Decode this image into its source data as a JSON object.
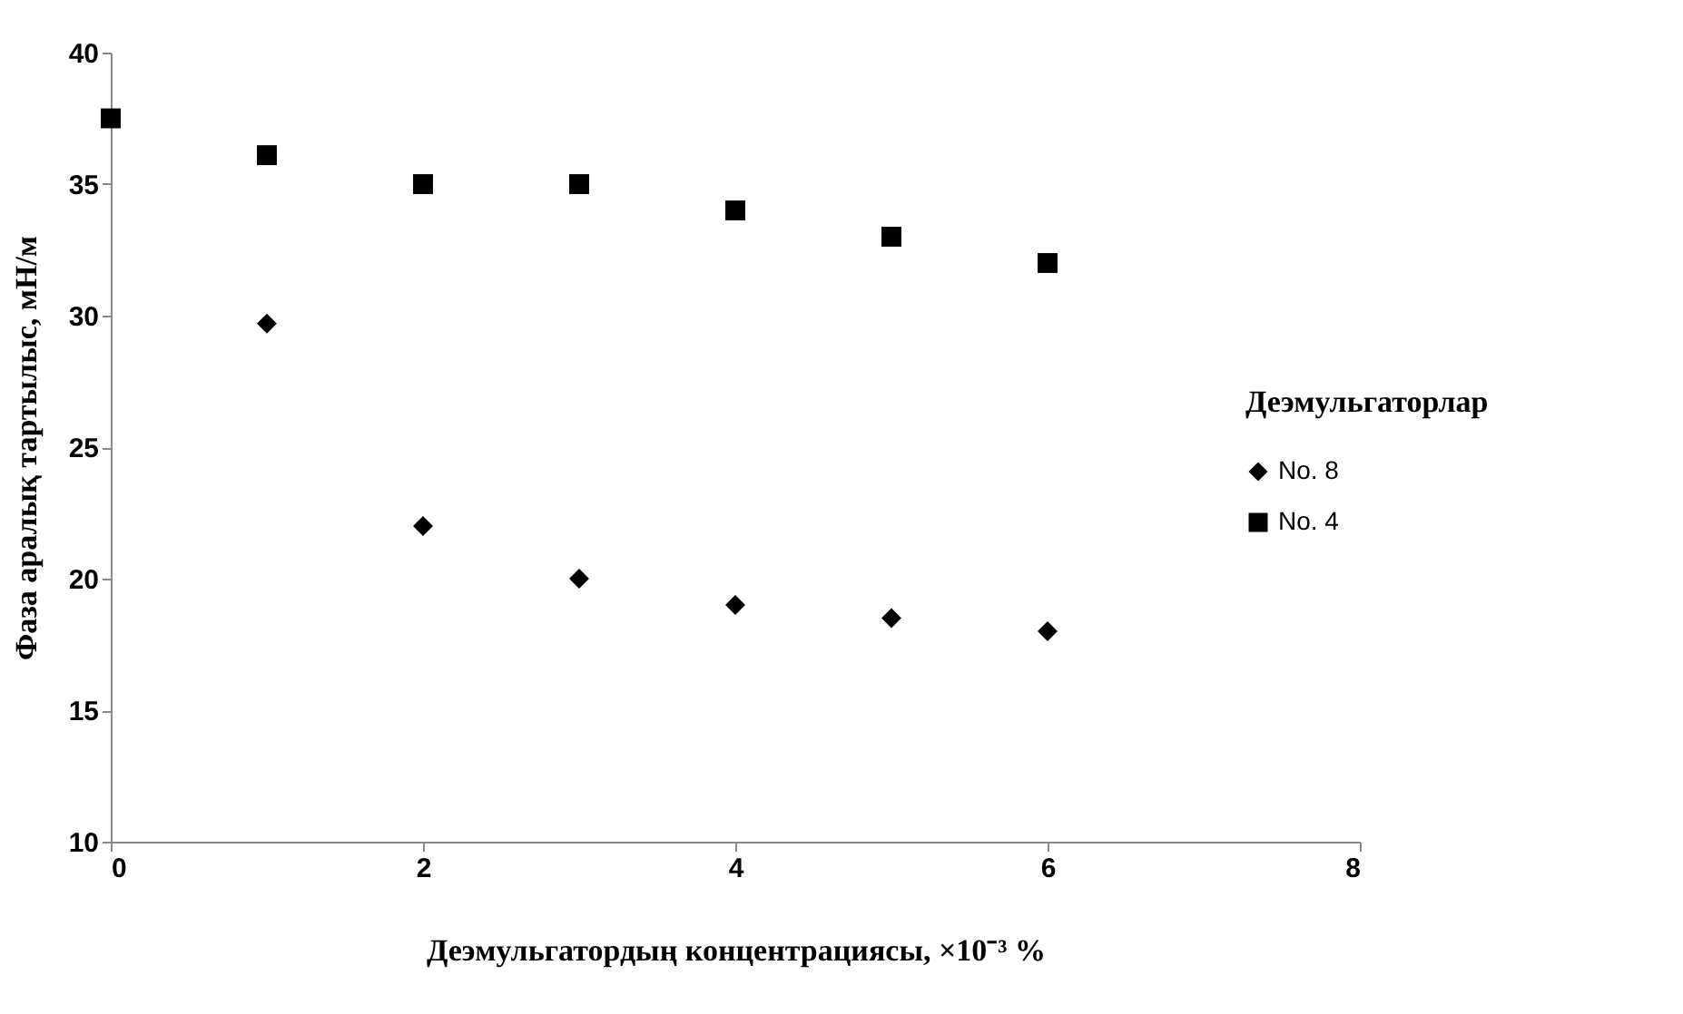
{
  "chart_data": {
    "type": "scatter",
    "xlabel": "Деэмульгатордың концентрациясы, ×10⁻³ %",
    "ylabel": "Фаза аралық тартылыс, мН/м",
    "legend_title": "Деэмульгаторлар",
    "x": [
      0,
      1,
      2,
      3,
      4,
      5,
      6
    ],
    "series": [
      {
        "name": "No. 8",
        "color": "#000000",
        "marker": "diamond",
        "values": [
          null,
          29.7,
          22,
          20,
          19,
          18.5,
          18
        ]
      },
      {
        "name": "No. 4",
        "color": "#000000",
        "marker": "square",
        "values": [
          37.5,
          36.1,
          35,
          35,
          34,
          33,
          32
        ]
      }
    ],
    "xlim": [
      0,
      8
    ],
    "xticks": [
      0,
      2,
      4,
      6,
      8
    ],
    "ylim": [
      10,
      40
    ],
    "yticks": [
      10,
      15,
      20,
      25,
      30,
      35,
      40
    ],
    "grid": false,
    "legend": "right"
  }
}
